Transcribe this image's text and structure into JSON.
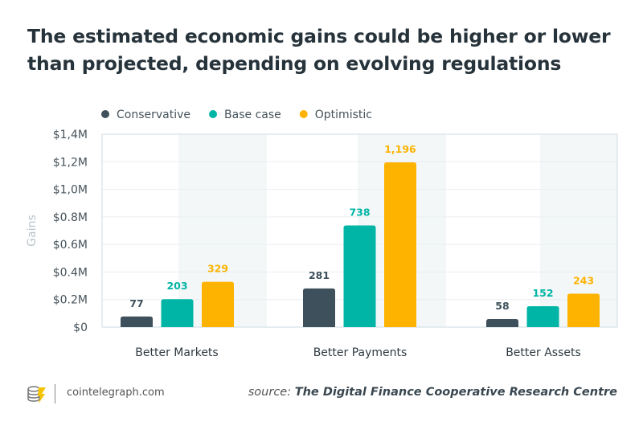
{
  "title": "The estimated economic gains could be higher or lower than projected, depending on evolving regulations",
  "footer": {
    "site": "cointelegraph.com",
    "source_prefix": "source:",
    "source_name": "The Digital Finance Cooperative Research Centre"
  },
  "chart_data": {
    "type": "bar",
    "title": "The estimated economic gains could be higher or lower than projected, depending on evolving regulations",
    "ylabel": "Gains",
    "xlabel": "",
    "ylim": [
      0,
      1.4
    ],
    "yticks": [
      "$0",
      "$0.2M",
      "$0.4M",
      "$0.6M",
      "$0.8M",
      "$1,0M",
      "$1,2M",
      "$1,4M"
    ],
    "categories": [
      "Better Markets",
      "Better Payments",
      "Better Assets"
    ],
    "legend": "top-left",
    "grid": true,
    "series": [
      {
        "name": "Conservative",
        "color": "#3d505b",
        "values": [
          77,
          281,
          58
        ],
        "labels": [
          "77",
          "281",
          "58"
        ]
      },
      {
        "name": "Base case",
        "color": "#00b5a5",
        "values": [
          203,
          738,
          152
        ],
        "labels": [
          "203",
          "738",
          "152"
        ]
      },
      {
        "name": "Optimistic",
        "color": "#fdb300",
        "values": [
          329,
          1196,
          243
        ],
        "labels": [
          "329",
          "1,196",
          "243"
        ]
      }
    ],
    "value_unit_note": "bar values in thousands of $ (axis in $M)"
  }
}
